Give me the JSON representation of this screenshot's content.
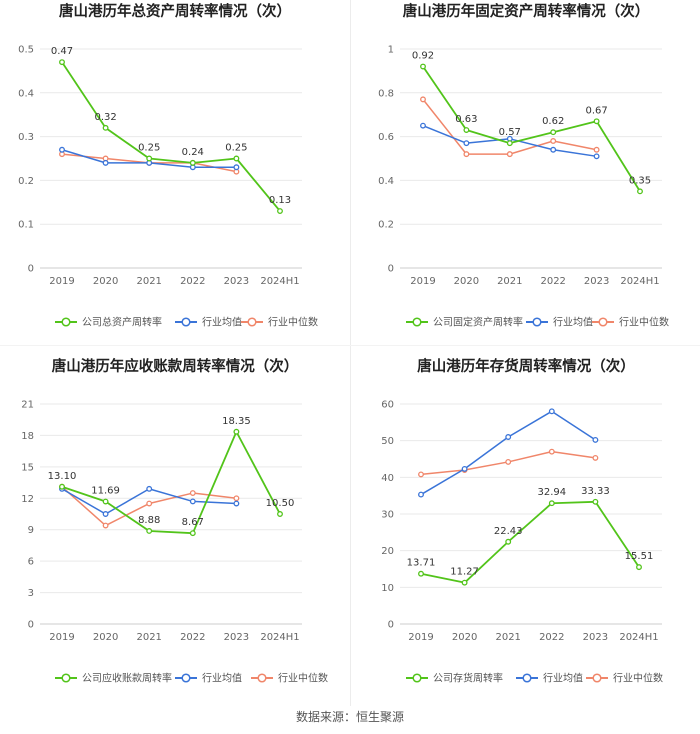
{
  "source": "数据来源：恒生聚源",
  "colors": {
    "company": "#52c41a",
    "industry_avg": "#3a74d8",
    "industry_median": "#f0866a"
  },
  "chart_data": [
    {
      "type": "line",
      "title": "唐山港历年总资产周转率情况（次）",
      "categories": [
        "2019",
        "2020",
        "2021",
        "2022",
        "2023",
        "2024H1"
      ],
      "ylim": [
        0,
        0.5
      ],
      "yticks": [
        "0",
        "0.1",
        "0.2",
        "0.3",
        "0.4",
        "0.5"
      ],
      "series": [
        {
          "name": "公司总资产周转率",
          "key": "company",
          "values": [
            0.47,
            0.32,
            0.25,
            0.24,
            0.25,
            0.13
          ],
          "labels": [
            "0.47",
            "0.32",
            "0.25",
            "0.24",
            "0.25",
            "0.13"
          ]
        },
        {
          "name": "行业均值",
          "key": "industry_avg",
          "values": [
            0.27,
            0.24,
            0.24,
            0.23,
            0.23,
            null
          ]
        },
        {
          "name": "行业中位数",
          "key": "industry_median",
          "values": [
            0.26,
            0.25,
            0.24,
            0.24,
            0.22,
            null
          ]
        }
      ]
    },
    {
      "type": "line",
      "title": "唐山港历年固定资产周转率情况（次）",
      "categories": [
        "2019",
        "2020",
        "2021",
        "2022",
        "2023",
        "2024H1"
      ],
      "ylim": [
        0,
        1
      ],
      "yticks": [
        "0",
        "0.2",
        "0.4",
        "0.6",
        "0.8",
        "1"
      ],
      "series": [
        {
          "name": "公司固定资产周转率",
          "key": "company",
          "values": [
            0.92,
            0.63,
            0.57,
            0.62,
            0.67,
            0.35
          ],
          "labels": [
            "0.92",
            "0.63",
            "0.57",
            "0.62",
            "0.67",
            "0.35"
          ]
        },
        {
          "name": "行业均值",
          "key": "industry_avg",
          "values": [
            0.65,
            0.57,
            0.59,
            0.54,
            0.51,
            null
          ]
        },
        {
          "name": "行业中位数",
          "key": "industry_median",
          "values": [
            0.77,
            0.52,
            0.52,
            0.58,
            0.54,
            null
          ]
        }
      ]
    },
    {
      "type": "line",
      "title": "唐山港历年应收账款周转率情况（次）",
      "categories": [
        "2019",
        "2020",
        "2021",
        "2022",
        "2023",
        "2024H1"
      ],
      "ylim": [
        0,
        21
      ],
      "yticks": [
        "0",
        "3",
        "6",
        "9",
        "12",
        "15",
        "18",
        "21"
      ],
      "series": [
        {
          "name": "公司应收账款周转率",
          "key": "company",
          "values": [
            13.1,
            11.69,
            8.88,
            8.67,
            18.35,
            10.5
          ],
          "labels": [
            "13.10",
            "11.69",
            "8.88",
            "8.67",
            "18.35",
            "10.50"
          ]
        },
        {
          "name": "行业均值",
          "key": "industry_avg",
          "values": [
            12.9,
            10.5,
            12.9,
            11.7,
            11.5,
            null
          ]
        },
        {
          "name": "行业中位数",
          "key": "industry_median",
          "values": [
            13.1,
            9.4,
            11.5,
            12.5,
            12.0,
            null
          ]
        }
      ]
    },
    {
      "type": "line",
      "title": "唐山港历年存货周转率情况（次）",
      "categories": [
        "2019",
        "2020",
        "2021",
        "2022",
        "2023",
        "2024H1"
      ],
      "ylim": [
        0,
        60
      ],
      "yticks": [
        "0",
        "10",
        "20",
        "30",
        "40",
        "50",
        "60"
      ],
      "series": [
        {
          "name": "公司存货周转率",
          "key": "company",
          "values": [
            13.71,
            11.27,
            22.43,
            32.94,
            33.33,
            15.51
          ],
          "labels": [
            "13.71",
            "11.27",
            "22.43",
            "32.94",
            "33.33",
            "15.51"
          ]
        },
        {
          "name": "行业均值",
          "key": "industry_avg",
          "values": [
            35.3,
            42.3,
            51.0,
            58.0,
            50.2,
            null
          ]
        },
        {
          "name": "行业中位数",
          "key": "industry_median",
          "values": [
            40.8,
            42.0,
            44.2,
            47.0,
            45.3,
            null
          ]
        }
      ]
    }
  ]
}
